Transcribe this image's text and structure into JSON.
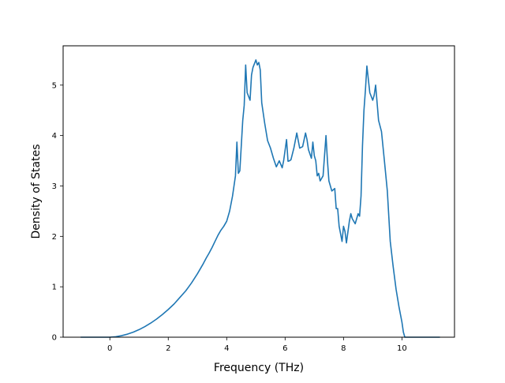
{
  "chart_data": {
    "type": "line",
    "title": "",
    "xlabel": "Frequency (THz)",
    "ylabel": "Density of States",
    "xlim": [
      -1.6,
      11.8
    ],
    "ylim": [
      0,
      5.78
    ],
    "xticks": [
      0,
      2,
      4,
      6,
      8,
      10
    ],
    "yticks": [
      0,
      1,
      2,
      3,
      4,
      5
    ],
    "grid": false,
    "legend": "none",
    "line_color": "#1f77b4",
    "series": [
      {
        "x": [
          -1.0,
          -0.5,
          0.0,
          0.2,
          0.4,
          0.6,
          0.8,
          1.0,
          1.2,
          1.4,
          1.6,
          1.8,
          2.0,
          2.2,
          2.4,
          2.6,
          2.7,
          2.8,
          2.9,
          3.0,
          3.1,
          3.2,
          3.3,
          3.4,
          3.5,
          3.6,
          3.7,
          3.8,
          3.9,
          4.0,
          4.1,
          4.2,
          4.3,
          4.35,
          4.4,
          4.45,
          4.5,
          4.55,
          4.6,
          4.65,
          4.7,
          4.8,
          4.85,
          4.9,
          5.0,
          5.05,
          5.1,
          5.15,
          5.2,
          5.3,
          5.4,
          5.5,
          5.6,
          5.7,
          5.8,
          5.9,
          5.95,
          6.05,
          6.1,
          6.15,
          6.2,
          6.3,
          6.4,
          6.5,
          6.6,
          6.7,
          6.75,
          6.8,
          6.9,
          6.95,
          7.0,
          7.05,
          7.1,
          7.15,
          7.2,
          7.3,
          7.4,
          7.45,
          7.5,
          7.6,
          7.7,
          7.75,
          7.8,
          7.85,
          7.9,
          7.95,
          8.0,
          8.05,
          8.1,
          8.2,
          8.25,
          8.3,
          8.4,
          8.5,
          8.55,
          8.6,
          8.65,
          8.7,
          8.75,
          8.8,
          8.9,
          9.0,
          9.05,
          9.1,
          9.2,
          9.3,
          9.4,
          9.5,
          9.55,
          9.6,
          9.7,
          9.8,
          9.9,
          10.0,
          10.05,
          10.1,
          10.15,
          10.2,
          10.3,
          10.5,
          11.3
        ],
        "y": [
          0.0,
          0.0,
          0.0,
          0.01,
          0.03,
          0.06,
          0.1,
          0.15,
          0.21,
          0.28,
          0.36,
          0.45,
          0.55,
          0.66,
          0.79,
          0.92,
          1.0,
          1.08,
          1.17,
          1.26,
          1.36,
          1.46,
          1.57,
          1.67,
          1.78,
          1.9,
          2.02,
          2.12,
          2.2,
          2.3,
          2.5,
          2.8,
          3.2,
          3.87,
          3.25,
          3.3,
          3.8,
          4.3,
          4.6,
          5.4,
          4.85,
          4.7,
          5.2,
          5.35,
          5.5,
          5.4,
          5.45,
          5.3,
          4.65,
          4.25,
          3.9,
          3.75,
          3.55,
          3.38,
          3.5,
          3.36,
          3.5,
          3.92,
          3.49,
          3.5,
          3.52,
          3.75,
          4.05,
          3.75,
          3.78,
          4.05,
          3.92,
          3.72,
          3.55,
          3.87,
          3.6,
          3.5,
          3.2,
          3.25,
          3.1,
          3.2,
          4.0,
          3.5,
          3.1,
          2.9,
          2.95,
          2.55,
          2.55,
          2.2,
          2.05,
          1.9,
          2.2,
          2.1,
          1.87,
          2.3,
          2.45,
          2.35,
          2.25,
          2.45,
          2.4,
          2.8,
          3.8,
          4.5,
          4.9,
          5.38,
          4.85,
          4.7,
          4.8,
          5.0,
          4.3,
          4.08,
          3.5,
          2.9,
          2.4,
          1.9,
          1.4,
          0.95,
          0.6,
          0.3,
          0.1,
          0.0,
          0.0,
          0.0,
          0.0,
          0.0,
          0.0
        ]
      }
    ]
  }
}
